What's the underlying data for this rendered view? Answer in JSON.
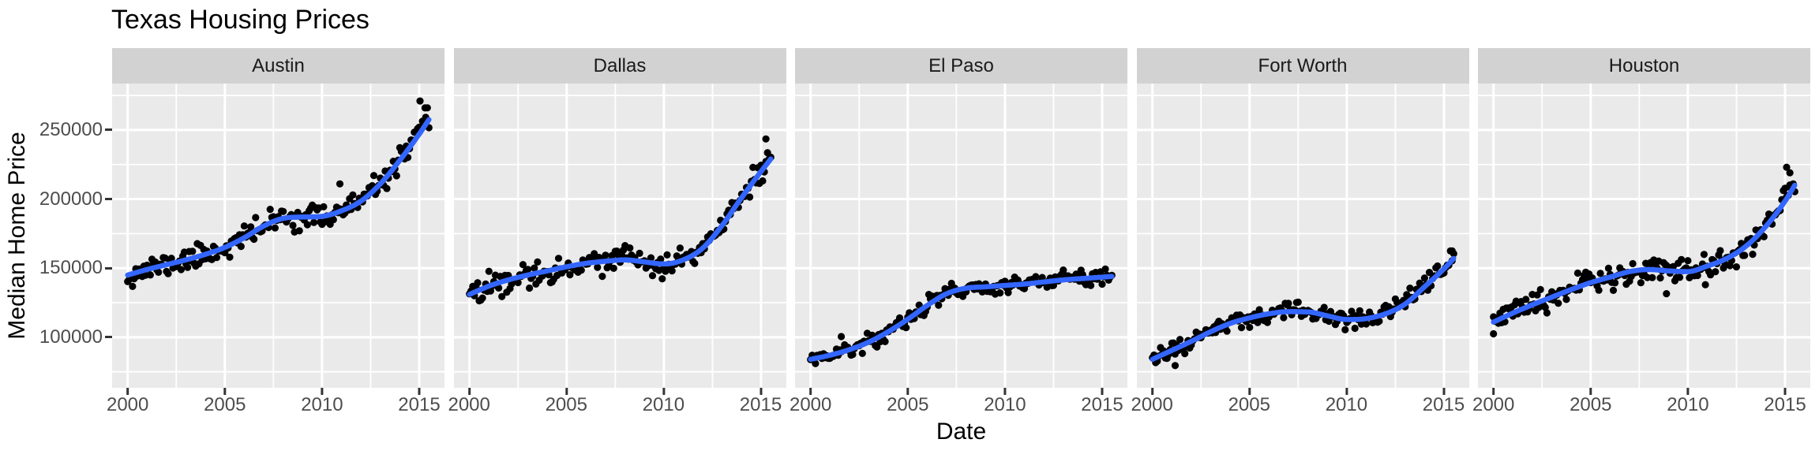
{
  "chart_data": {
    "type": "scatter",
    "subtype": "faceted scatter with loess smooth",
    "title": "Texas Housing Prices",
    "xlabel": "Date",
    "ylabel": "Median Home Price",
    "legend_position": "none",
    "grid_on": true,
    "x_ticks": [
      2000,
      2005,
      2010,
      2015
    ],
    "y_ticks": [
      100000,
      150000,
      200000,
      250000
    ],
    "x_minor_grid": [
      2002.5,
      2007.5,
      2012.5
    ],
    "y_minor_grid": [
      75000,
      125000,
      175000,
      225000,
      275000
    ],
    "x_domain": [
      1999.2,
      2016.3
    ],
    "y_domain": [
      63400,
      283600
    ],
    "x_start": 2000.0,
    "x_end": 2015.5,
    "points_per_facet": 187,
    "point_radius": 4.6,
    "trend_years": [
      2000,
      2001,
      2002,
      2003,
      2004,
      2005,
      2006,
      2007,
      2008,
      2009,
      2010,
      2011,
      2012,
      2013,
      2014,
      2015,
      2015.5
    ],
    "facets": [
      {
        "label": "Austin",
        "trend": [
          145000,
          149000,
          152500,
          156000,
          160000,
          165000,
          172000,
          180500,
          186000,
          187000,
          187500,
          191500,
          198500,
          211000,
          228000,
          247000,
          257500
        ],
        "noise_sd": 4200,
        "seed": 11,
        "outliers": [
          [
            2010.92,
            211000
          ],
          [
            2015.04,
            271000
          ],
          [
            2015.3,
            266000
          ]
        ]
      },
      {
        "label": "Dallas",
        "trend": [
          131000,
          137000,
          141500,
          145000,
          148000,
          151000,
          153500,
          155000,
          156000,
          154500,
          153000,
          156000,
          164500,
          181000,
          201000,
          220000,
          229000
        ],
        "noise_sd": 4200,
        "seed": 22,
        "outliers": [
          [
            2015.25,
            243500
          ]
        ]
      },
      {
        "label": "El Paso",
        "trend": [
          84000,
          87000,
          91000,
          96500,
          104000,
          113000,
          123000,
          131500,
          135500,
          136500,
          137500,
          138500,
          140000,
          141500,
          142500,
          143500,
          144000
        ],
        "noise_sd": 2800,
        "seed": 33,
        "outliers": [
          [
            2001.58,
            100500
          ]
        ]
      },
      {
        "label": "Fort Worth",
        "trend": [
          84000,
          90500,
          97000,
          104000,
          110000,
          114000,
          117000,
          118500,
          118300,
          115500,
          112800,
          113500,
          117000,
          124000,
          136500,
          149500,
          157000
        ],
        "noise_sd": 3600,
        "seed": 44,
        "outliers": [
          [
            2001.17,
            79500
          ],
          [
            2015.42,
            162500
          ]
        ]
      },
      {
        "label": "Houston",
        "trend": [
          111000,
          117500,
          123500,
          129000,
          134500,
          139500,
          143500,
          147500,
          149000,
          148000,
          147500,
          151500,
          157000,
          166000,
          180000,
          198500,
          210000
        ],
        "noise_sd": 4200,
        "seed": 55,
        "outliers": [
          [
            2000.0,
            102500
          ],
          [
            2008.9,
            131500
          ],
          [
            2010.9,
            138000
          ],
          [
            2015.08,
            223000
          ],
          [
            2015.25,
            219000
          ]
        ]
      }
    ],
    "colors": {
      "smooth_line": "#3366FF",
      "points": "#000000",
      "panel_bg": "#EAEAEA",
      "strip_bg": "#D2D2D2",
      "grid": "#FFFFFF",
      "tick_text": "#4D4D4D",
      "tick_mark": "#333333",
      "title_text": "#000000",
      "strip_text": "#1A1A1A"
    }
  }
}
